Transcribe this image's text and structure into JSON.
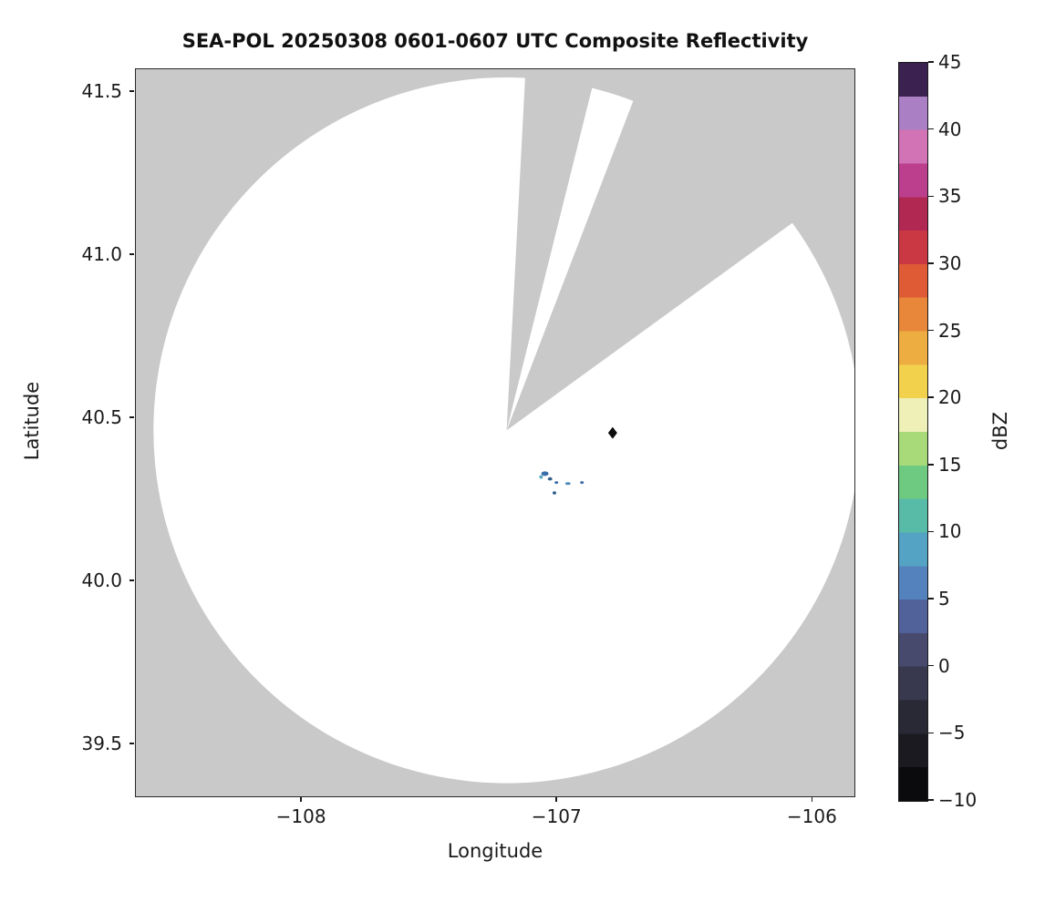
{
  "title": "SEA-POL 20250308 0601-0607 UTC Composite Reflectivity",
  "axes": {
    "xlabel": "Longitude",
    "ylabel": "Latitude",
    "x_ticks": [
      {
        "label": "−108",
        "value": -108
      },
      {
        "label": "−107",
        "value": -107
      },
      {
        "label": "−106",
        "value": -106
      }
    ],
    "y_ticks": [
      {
        "label": "41.5",
        "value": 41.5
      },
      {
        "label": "41.0",
        "value": 41.0
      },
      {
        "label": "40.5",
        "value": 40.5
      },
      {
        "label": "40.0",
        "value": 40.0
      },
      {
        "label": "39.5",
        "value": 39.5
      }
    ]
  },
  "colorbar": {
    "label": "dBZ",
    "min": -10,
    "max": 45,
    "step": 2.5,
    "ticks": [
      {
        "label": "45",
        "value": 45
      },
      {
        "label": "40",
        "value": 40
      },
      {
        "label": "35",
        "value": 35
      },
      {
        "label": "30",
        "value": 30
      },
      {
        "label": "25",
        "value": 25
      },
      {
        "label": "20",
        "value": 20
      },
      {
        "label": "15",
        "value": 15
      },
      {
        "label": "10",
        "value": 10
      },
      {
        "label": "5",
        "value": 5
      },
      {
        "label": "0",
        "value": 0
      },
      {
        "label": "−5",
        "value": -5
      },
      {
        "label": "−10",
        "value": -10
      }
    ],
    "colors_bottom_to_top": [
      "#0b0b0d",
      "#1a1a20",
      "#292936",
      "#38384f",
      "#474a6d",
      "#51629b",
      "#5382bd",
      "#55a3c4",
      "#58bba8",
      "#6ec981",
      "#a8da7a",
      "#eef0b8",
      "#f2d24d",
      "#eead41",
      "#e8863a",
      "#de5b36",
      "#c93843",
      "#b12953",
      "#bc3f8d",
      "#d173b5",
      "#ab7fc4",
      "#3a2150"
    ]
  },
  "chart_data": {
    "type": "heatmap",
    "title": "SEA-POL 20250308 0601-0607 UTC Composite Reflectivity",
    "xlabel": "Longitude",
    "ylabel": "Latitude",
    "xlim": [
      -108.65,
      -105.83
    ],
    "ylim": [
      39.335,
      41.57
    ],
    "value_range": [
      -10,
      45
    ],
    "units": "dBZ",
    "no_data_color": "#c9c9c9",
    "coverage_color": "#ffffff",
    "radar": {
      "lon": -107.195,
      "lat": 40.46,
      "coverage_radius_deg": 1.082
    },
    "blocked_sectors_deg": [
      {
        "start": 3,
        "end": 14
      },
      {
        "start": 21,
        "end": 54
      }
    ],
    "site_marker": {
      "shape": "diamond",
      "lon": -106.78,
      "lat": 40.452,
      "color": "#0d0d0d"
    },
    "echoes": [
      {
        "lon": -107.045,
        "lat": 40.327,
        "rx": 4,
        "ry": 2.5,
        "color": "#3a6ea8",
        "dbz": 5
      },
      {
        "lon": -107.06,
        "lat": 40.317,
        "rx": 2,
        "ry": 2,
        "color": "#59a9c0",
        "dbz": 8
      },
      {
        "lon": -107.025,
        "lat": 40.311,
        "rx": 2.5,
        "ry": 1.8,
        "color": "#2e5f8a",
        "dbz": 4
      },
      {
        "lon": -107.0,
        "lat": 40.3,
        "rx": 2,
        "ry": 1.5,
        "color": "#3a6ea8",
        "dbz": 5
      },
      {
        "lon": -106.955,
        "lat": 40.297,
        "rx": 3,
        "ry": 1.5,
        "color": "#4a86b8",
        "dbz": 6
      },
      {
        "lon": -106.9,
        "lat": 40.3,
        "rx": 2,
        "ry": 1.5,
        "color": "#3a6ea8",
        "dbz": 5
      },
      {
        "lon": -107.008,
        "lat": 40.268,
        "rx": 2,
        "ry": 1.8,
        "color": "#2e5f8a",
        "dbz": 4
      }
    ]
  }
}
